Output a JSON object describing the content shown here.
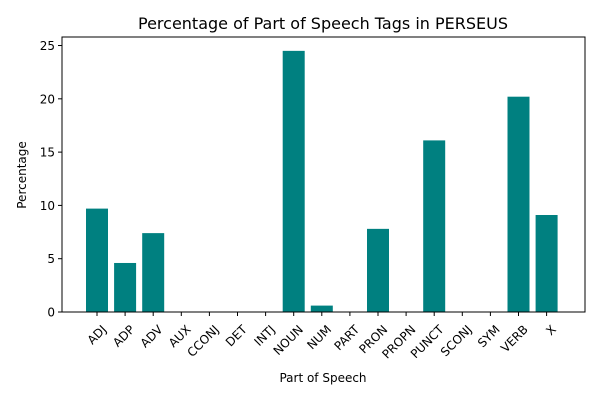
{
  "chart_data": {
    "type": "bar",
    "title": "Percentage of Part of Speech Tags in PERSEUS",
    "xlabel": "Part of Speech",
    "ylabel": "Percentage",
    "categories": [
      "ADJ",
      "ADP",
      "ADV",
      "AUX",
      "CCONJ",
      "DET",
      "INTJ",
      "NOUN",
      "NUM",
      "PART",
      "PRON",
      "PROPN",
      "PUNCT",
      "SCONJ",
      "SYM",
      "VERB",
      "X"
    ],
    "values": [
      9.7,
      4.6,
      7.4,
      0,
      0,
      0,
      0,
      24.5,
      0.6,
      0,
      7.8,
      0,
      16.1,
      0,
      0,
      20.2,
      9.1
    ],
    "ylim": [
      0,
      25.8
    ],
    "yticks": [
      0,
      5,
      10,
      15,
      20,
      25
    ],
    "bar_color": "#008080",
    "grid": false,
    "legend": "none"
  }
}
